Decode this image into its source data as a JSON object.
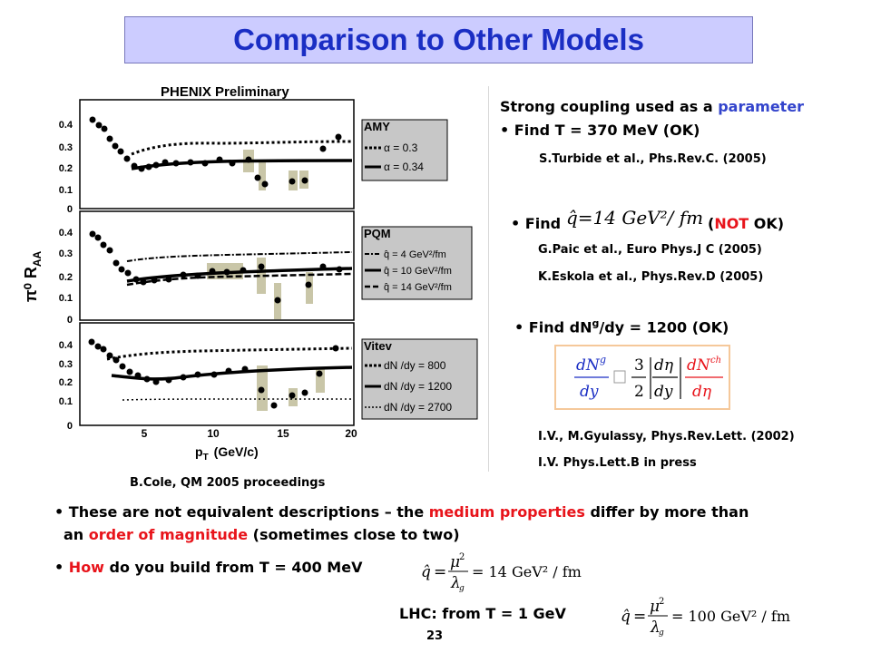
{
  "title": "Comparison to Other Models",
  "plot": {
    "header": "PHENIX Preliminary",
    "ylabel": "π⁰ R",
    "ylabel_sub": "AA",
    "xlabel": "p",
    "xlabel_sub": "T",
    "xlabel_unit": "(GeV/c)",
    "yticks": [
      "0.4",
      "0.3",
      "0.2",
      "0.1",
      "0"
    ],
    "xticks": [
      "5",
      "10",
      "15",
      "20"
    ],
    "panels": [
      {
        "legend_title": "AMY",
        "legend_items": [
          "α = 0.3",
          "α = 0.34"
        ],
        "legend_sub": "s"
      },
      {
        "legend_title": "PQM",
        "legend_items": [
          "q̂ = 4 GeV²/fm",
          "q̂ = 10 GeV²/fm",
          "q̂ = 14 GeV²/fm"
        ]
      },
      {
        "legend_title": "Vitev",
        "legend_items": [
          "dN /dy = 800",
          "dN /dy = 1200",
          "dN /dy = 2700"
        ],
        "legend_sub": "g"
      }
    ],
    "credit": "B.Cole, QM 2005 proceedings"
  },
  "right": {
    "strong_prefix": "Strong coupling used as a ",
    "strong_param": "parameter",
    "find_T": "Find  T = 370 MeV  (OK)",
    "ref1": "S.Turbide et al., Phs.Rev.C. (2005)",
    "find_label": "Find",
    "qhat_formula": "q̂=14 GeV²/ fm",
    "not_ok_open": "(",
    "not_ok_not": "NOT",
    "not_ok_close": " OK)",
    "ref2": "G.Paic et al., Euro Phys.J C (2005)",
    "ref3": "K.Eskola et al., Phys.Rev.D (2005)",
    "find_dn_a": "Find  dN",
    "find_dn_sup": "g",
    "find_dn_b": "/dy = 1200  (OK)",
    "ref4": "I.V., M.Gyulassy, Phys.Rev.Lett. (2002)",
    "ref5": "I.V. Phys.Lett.B in press"
  },
  "bottom": {
    "line1_a": "These are not equivalent descriptions – the ",
    "line1_red": "medium properties",
    "line1_b": " differ by more than",
    "line2_a": "an ",
    "line2_red": "order of magnitude",
    "line2_b": "  (sometimes close to two)",
    "how_red": "How",
    "how_rest": " do you build  from T =  400 MeV",
    "formula1": "= 14 GeV² / fm",
    "lhc": "LHC:   from T =  1 GeV",
    "formula2": "= 100 GeV² / fm",
    "page_num": "23"
  },
  "colors": {
    "title_bg": "#ccccff",
    "title_text": "#1a2ec4",
    "accent_blue": "#3344cc",
    "accent_red": "#e8141b",
    "box_border": "#f5c89a"
  }
}
